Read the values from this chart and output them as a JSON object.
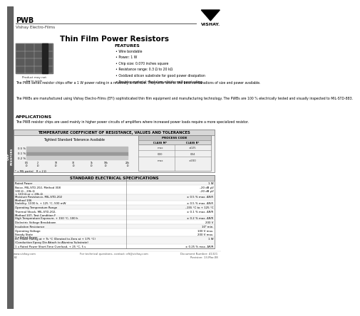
{
  "title": "Thin Film Power Resistors",
  "pwb_label": "PWB",
  "subtitle": "Vishay Electro-Films",
  "features_title": "FEATURES",
  "features": [
    "Wire bondable",
    "Power: 1 W",
    "Chip size: 0.070 inches square",
    "Resistance range: 0.3 Ω to 20 kΩ",
    "Oxidized silicon substrate for good power dissipation",
    "Resistor material: Tantalum nitride, self-passivating"
  ],
  "desc1": "The PWB series resistor chips offer a 1 W power rating in a relatively small size. They offer one of the best combinations of size and power available.",
  "desc2": "The PWBs are manufactured using Vishay Electro-Films (EFI) sophisticated thin film equipment and manufacturing technology. The PWBs are 100 % electrically tested and visually inspected to MIL-STD-883.",
  "applications_title": "APPLICATIONS",
  "applications_text": "The PWB resistor chips are used mainly in higher power circuits of amplifiers where increased power loads require a more specialized resistor.",
  "tcr_title": "TEMPERATURE COEFFICIENT OF RESISTANCE, VALUES AND TOLERANCES",
  "tcr_subtitle": "Tightest Standard Tolerance Available",
  "spec_title": "STANDARD ELECTRICAL SPECIFICATIONS",
  "spec_rows": [
    [
      "Rated Power",
      "1 W"
    ],
    [
      "Noise, MIL-STD-202, Method 308\n100 Ω – 20k Ω\n< 100 Ω or > 20k Ω",
      "–20 dB μV\n–20 dB μV"
    ],
    [
      "Moisture Resistance, MIL-STD-202\nMethod 106",
      "± 0.5 % max. ΔR/R"
    ],
    [
      "Stability, 1000 h, + 125 °C, 500 mW",
      "± 0.5 % max. ΔR/R"
    ],
    [
      "Operating Temperature Range",
      "–155 °C to + 125 °C"
    ],
    [
      "Thermal Shock, MIL-STD-202,\nMethod 107, Test Condition F",
      "± 0.1 % max. ΔR/R"
    ],
    [
      "High Temperature Exposure, + 150 °C, 100 h",
      "± 0.2 % max. ΔR/R"
    ],
    [
      "Dielectric Voltage Breakdown",
      "200 V"
    ],
    [
      "Insulation Resistance",
      "10⁹ min."
    ],
    [
      "Operating Voltage\nSteady State\n1 x Rated Power",
      "100 V max.\n200 V max."
    ],
    [
      "DC Power Rating at + Ts °C (Derated to Zero at + 175 °C)\n(Conduction Epoxy Die Attach to Alumina Substrate)",
      "1 W"
    ],
    [
      "1 x Rated Power Short-Time Overload, + 25 °C, 5 s",
      "± 0.25 % max. ΔR/R"
    ]
  ],
  "footer_left": "www.vishay.com",
  "footer_num": "62",
  "footer_center": "For technical questions, contact: eft@vishay.com",
  "footer_doc": "Document Number: 41321\nRevision: 13-Mar-08",
  "product_note": "Product may not\nbe to scale",
  "bg_color": "#ffffff"
}
